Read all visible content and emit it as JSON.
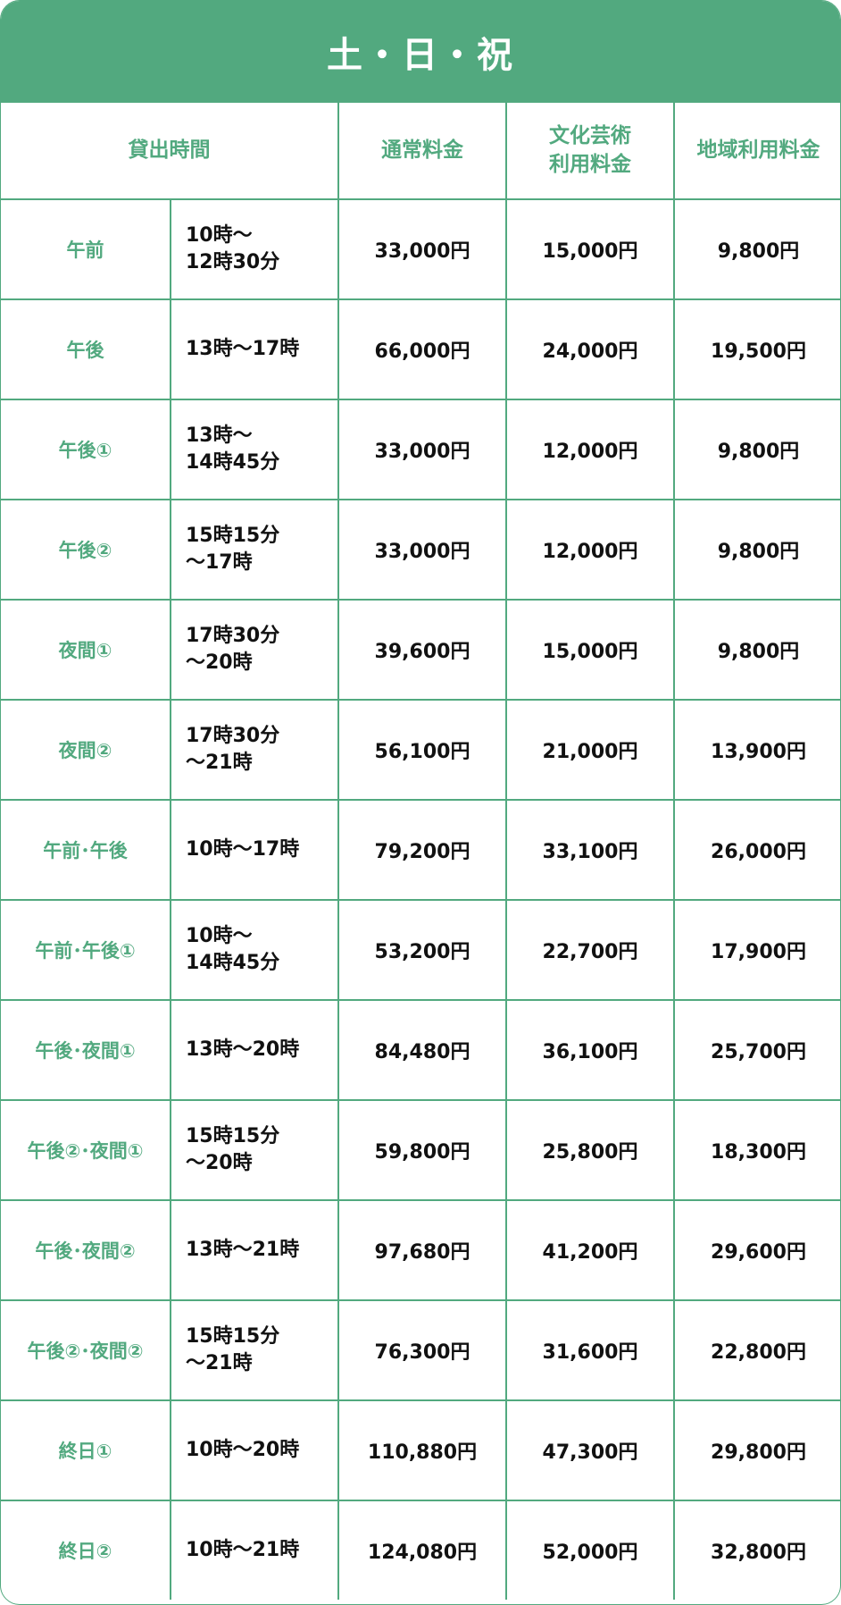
{
  "title": "土・日・祝",
  "colors": {
    "accent": "#52a97f",
    "text": "#111111"
  },
  "headers": {
    "rental_time": "貸出時間",
    "normal": "通常料金",
    "culture": "文化芸術\n利用料金",
    "local": "地域利用料金"
  },
  "rows": [
    {
      "label": "午前",
      "time": "10時～\n12時30分",
      "normal": "33,000円",
      "culture": "15,000円",
      "local": "9,800円"
    },
    {
      "label": "午後",
      "time": "13時～17時",
      "normal": "66,000円",
      "culture": "24,000円",
      "local": "19,500円"
    },
    {
      "label": "午後①",
      "time": "13時～\n14時45分",
      "normal": "33,000円",
      "culture": "12,000円",
      "local": "9,800円"
    },
    {
      "label": "午後②",
      "time": "15時15分\n～17時",
      "normal": "33,000円",
      "culture": "12,000円",
      "local": "9,800円"
    },
    {
      "label": "夜間①",
      "time": "17時30分\n～20時",
      "normal": "39,600円",
      "culture": "15,000円",
      "local": "9,800円"
    },
    {
      "label": "夜間②",
      "time": "17時30分\n～21時",
      "normal": "56,100円",
      "culture": "21,000円",
      "local": "13,900円"
    },
    {
      "label": "午前･午後",
      "time": "10時～17時",
      "normal": "79,200円",
      "culture": "33,100円",
      "local": "26,000円"
    },
    {
      "label": "午前･午後①",
      "time": "10時～\n14時45分",
      "normal": "53,200円",
      "culture": "22,700円",
      "local": "17,900円"
    },
    {
      "label": "午後･夜間①",
      "time": "13時～20時",
      "normal": "84,480円",
      "culture": "36,100円",
      "local": "25,700円"
    },
    {
      "label": "午後②･夜間①",
      "time": "15時15分\n～20時",
      "normal": "59,800円",
      "culture": "25,800円",
      "local": "18,300円"
    },
    {
      "label": "午後･夜間②",
      "time": "13時～21時",
      "normal": "97,680円",
      "culture": "41,200円",
      "local": "29,600円"
    },
    {
      "label": "午後②･夜間②",
      "time": "15時15分\n～21時",
      "normal": "76,300円",
      "culture": "31,600円",
      "local": "22,800円"
    },
    {
      "label": "終日①",
      "time": "10時～20時",
      "normal": "110,880円",
      "culture": "47,300円",
      "local": "29,800円"
    },
    {
      "label": "終日②",
      "time": "10時～21時",
      "normal": "124,080円",
      "culture": "52,000円",
      "local": "32,800円"
    }
  ]
}
